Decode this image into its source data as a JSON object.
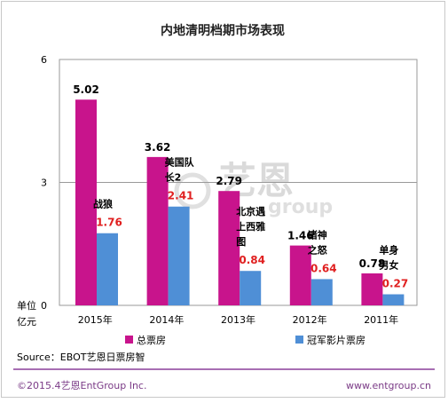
{
  "chart_data": {
    "type": "bar",
    "title": "内地清明档期市场表现",
    "categories": [
      "2015年",
      "2014年",
      "2013年",
      "2012年",
      "2011年"
    ],
    "series": [
      {
        "name": "总票房",
        "values": [
          5.02,
          3.62,
          2.79,
          1.46,
          0.78
        ]
      },
      {
        "name": "冠军影片票房",
        "values": [
          1.76,
          2.41,
          0.84,
          0.64,
          0.27
        ]
      }
    ],
    "champion_films": [
      "战狼",
      "美国队长2",
      "北京遇上西雅图",
      "诸神之怒",
      "单身男女"
    ],
    "ylim": [
      0,
      6
    ],
    "yticks": [
      "0",
      "3",
      "6"
    ],
    "unit_label": "单位 亿元",
    "grid": "horizontal",
    "legend_placement": "bottom"
  },
  "colors": {
    "total": "#c8148c",
    "champion": "#4f8fd6",
    "champion_value": "#e02020"
  },
  "source": "Source：EBOT艺恩日票房智",
  "footer": {
    "left": "©2015.4艺恩EntGroup Inc.",
    "right": "www.entgroup.cn"
  },
  "watermark": {
    "cn": "艺恩",
    "en": "group"
  }
}
